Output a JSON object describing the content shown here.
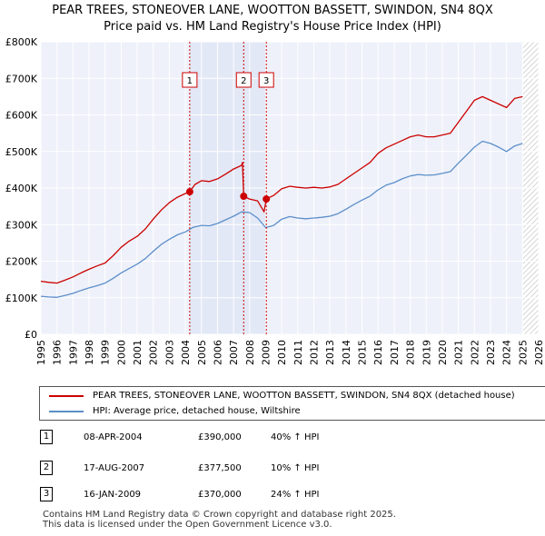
{
  "chart_data": {
    "type": "line",
    "title": "PEAR TREES, STONEOVER LANE, WOOTTON BASSETT, SWINDON, SN4 8QX",
    "subtitle": "Price paid vs. HM Land Registry's House Price Index (HPI)",
    "xlabel": "",
    "ylabel": "",
    "xlim": [
      1995,
      2026
    ],
    "ylim": [
      0,
      800000
    ],
    "x_ticks": [
      "1995",
      "1996",
      "1997",
      "1998",
      "1999",
      "2000",
      "2001",
      "2002",
      "2003",
      "2004",
      "2005",
      "2006",
      "2007",
      "2008",
      "2009",
      "2010",
      "2011",
      "2012",
      "2013",
      "2014",
      "2015",
      "2016",
      "2017",
      "2018",
      "2019",
      "2020",
      "2021",
      "2022",
      "2023",
      "2024",
      "2025",
      "2026"
    ],
    "y_ticks": [
      {
        "value": 0,
        "label": "£0"
      },
      {
        "value": 100000,
        "label": "£100K"
      },
      {
        "value": 200000,
        "label": "£200K"
      },
      {
        "value": 300000,
        "label": "£300K"
      },
      {
        "value": 400000,
        "label": "£400K"
      },
      {
        "value": 500000,
        "label": "£500K"
      },
      {
        "value": 600000,
        "label": "£600K"
      },
      {
        "value": 700000,
        "label": "£700K"
      },
      {
        "value": 800000,
        "label": "£800K"
      }
    ],
    "grid": true,
    "shaded_regions": [
      {
        "from": 2004.27,
        "to": 2009.04,
        "label": "sales period"
      },
      {
        "from": 2025.0,
        "to": 2026.0,
        "label": "forecast (hatched)"
      }
    ],
    "series": [
      {
        "name": "PEAR TREES, STONEOVER LANE, WOOTTON BASSETT, SWINDON, SN4 8QX (detached house)",
        "color": "#cc0000",
        "points": [
          [
            1995.0,
            145000
          ],
          [
            1995.5,
            142000
          ],
          [
            1996.0,
            140000
          ],
          [
            1996.5,
            148000
          ],
          [
            1997.0,
            157000
          ],
          [
            1997.5,
            168000
          ],
          [
            1998.0,
            178000
          ],
          [
            1998.5,
            187000
          ],
          [
            1999.0,
            195000
          ],
          [
            1999.5,
            215000
          ],
          [
            2000.0,
            238000
          ],
          [
            2000.5,
            255000
          ],
          [
            2001.0,
            268000
          ],
          [
            2001.5,
            288000
          ],
          [
            2002.0,
            315000
          ],
          [
            2002.5,
            340000
          ],
          [
            2003.0,
            360000
          ],
          [
            2003.5,
            375000
          ],
          [
            2004.0,
            385000
          ],
          [
            2004.27,
            390000
          ],
          [
            2004.6,
            410000
          ],
          [
            2005.0,
            420000
          ],
          [
            2005.5,
            418000
          ],
          [
            2006.0,
            425000
          ],
          [
            2006.5,
            438000
          ],
          [
            2007.0,
            452000
          ],
          [
            2007.5,
            462000
          ],
          [
            2007.55,
            470000
          ],
          [
            2007.63,
            377500
          ],
          [
            2008.0,
            370000
          ],
          [
            2008.5,
            365000
          ],
          [
            2008.9,
            335000
          ],
          [
            2009.04,
            370000
          ],
          [
            2009.5,
            380000
          ],
          [
            2010.0,
            398000
          ],
          [
            2010.5,
            405000
          ],
          [
            2011.0,
            402000
          ],
          [
            2011.5,
            400000
          ],
          [
            2012.0,
            402000
          ],
          [
            2012.5,
            400000
          ],
          [
            2013.0,
            403000
          ],
          [
            2013.5,
            410000
          ],
          [
            2014.0,
            425000
          ],
          [
            2014.5,
            440000
          ],
          [
            2015.0,
            455000
          ],
          [
            2015.5,
            470000
          ],
          [
            2016.0,
            495000
          ],
          [
            2016.5,
            510000
          ],
          [
            2017.0,
            520000
          ],
          [
            2017.5,
            530000
          ],
          [
            2018.0,
            540000
          ],
          [
            2018.5,
            545000
          ],
          [
            2019.0,
            540000
          ],
          [
            2019.5,
            540000
          ],
          [
            2020.0,
            545000
          ],
          [
            2020.5,
            550000
          ],
          [
            2021.0,
            580000
          ],
          [
            2021.5,
            610000
          ],
          [
            2022.0,
            640000
          ],
          [
            2022.5,
            650000
          ],
          [
            2023.0,
            640000
          ],
          [
            2023.5,
            630000
          ],
          [
            2024.0,
            620000
          ],
          [
            2024.5,
            645000
          ],
          [
            2025.0,
            650000
          ]
        ]
      },
      {
        "name": "HPI: Average price, detached house, Wiltshire",
        "color": "#5b8ec9",
        "points": [
          [
            1995.0,
            104000
          ],
          [
            1995.5,
            102000
          ],
          [
            1996.0,
            101000
          ],
          [
            1996.5,
            106000
          ],
          [
            1997.0,
            112000
          ],
          [
            1997.5,
            120000
          ],
          [
            1998.0,
            127000
          ],
          [
            1998.5,
            133000
          ],
          [
            1999.0,
            140000
          ],
          [
            1999.5,
            153000
          ],
          [
            2000.0,
            168000
          ],
          [
            2000.5,
            180000
          ],
          [
            2001.0,
            192000
          ],
          [
            2001.5,
            207000
          ],
          [
            2002.0,
            227000
          ],
          [
            2002.5,
            246000
          ],
          [
            2003.0,
            260000
          ],
          [
            2003.5,
            272000
          ],
          [
            2004.0,
            280000
          ],
          [
            2004.5,
            293000
          ],
          [
            2005.0,
            298000
          ],
          [
            2005.5,
            297000
          ],
          [
            2006.0,
            303000
          ],
          [
            2006.5,
            313000
          ],
          [
            2007.0,
            323000
          ],
          [
            2007.5,
            335000
          ],
          [
            2008.0,
            333000
          ],
          [
            2008.5,
            318000
          ],
          [
            2009.0,
            292000
          ],
          [
            2009.5,
            298000
          ],
          [
            2010.0,
            315000
          ],
          [
            2010.5,
            322000
          ],
          [
            2011.0,
            318000
          ],
          [
            2011.5,
            316000
          ],
          [
            2012.0,
            318000
          ],
          [
            2012.5,
            320000
          ],
          [
            2013.0,
            323000
          ],
          [
            2013.5,
            330000
          ],
          [
            2014.0,
            342000
          ],
          [
            2014.5,
            355000
          ],
          [
            2015.0,
            367000
          ],
          [
            2015.5,
            378000
          ],
          [
            2016.0,
            395000
          ],
          [
            2016.5,
            408000
          ],
          [
            2017.0,
            415000
          ],
          [
            2017.5,
            425000
          ],
          [
            2018.0,
            433000
          ],
          [
            2018.5,
            437000
          ],
          [
            2019.0,
            435000
          ],
          [
            2019.5,
            436000
          ],
          [
            2020.0,
            440000
          ],
          [
            2020.5,
            445000
          ],
          [
            2021.0,
            468000
          ],
          [
            2021.5,
            490000
          ],
          [
            2022.0,
            512000
          ],
          [
            2022.5,
            528000
          ],
          [
            2023.0,
            522000
          ],
          [
            2023.5,
            512000
          ],
          [
            2024.0,
            500000
          ],
          [
            2024.5,
            515000
          ],
          [
            2025.0,
            522000
          ]
        ]
      }
    ],
    "annotations": [
      {
        "label": "1",
        "x": 2004.27,
        "y": 390000
      },
      {
        "label": "2",
        "x": 2007.63,
        "y": 377500
      },
      {
        "label": "3",
        "x": 2009.04,
        "y": 370000
      }
    ]
  },
  "legend": [
    {
      "label": "PEAR TREES, STONEOVER LANE, WOOTTON BASSETT, SWINDON, SN4 8QX (detached house)",
      "color": "#cc0000"
    },
    {
      "label": "HPI: Average price, detached house, Wiltshire",
      "color": "#5b8ec9"
    }
  ],
  "sales": [
    {
      "num": "1",
      "date": "08-APR-2004",
      "price": "£390,000",
      "hpi": "40% ↑ HPI"
    },
    {
      "num": "2",
      "date": "17-AUG-2007",
      "price": "£377,500",
      "hpi": "10% ↑ HPI"
    },
    {
      "num": "3",
      "date": "16-JAN-2009",
      "price": "£370,000",
      "hpi": "24% ↑ HPI"
    }
  ],
  "footer": {
    "line1": "Contains HM Land Registry data © Crown copyright and database right 2025.",
    "line2": "This data is licensed under the Open Government Licence v3.0."
  }
}
